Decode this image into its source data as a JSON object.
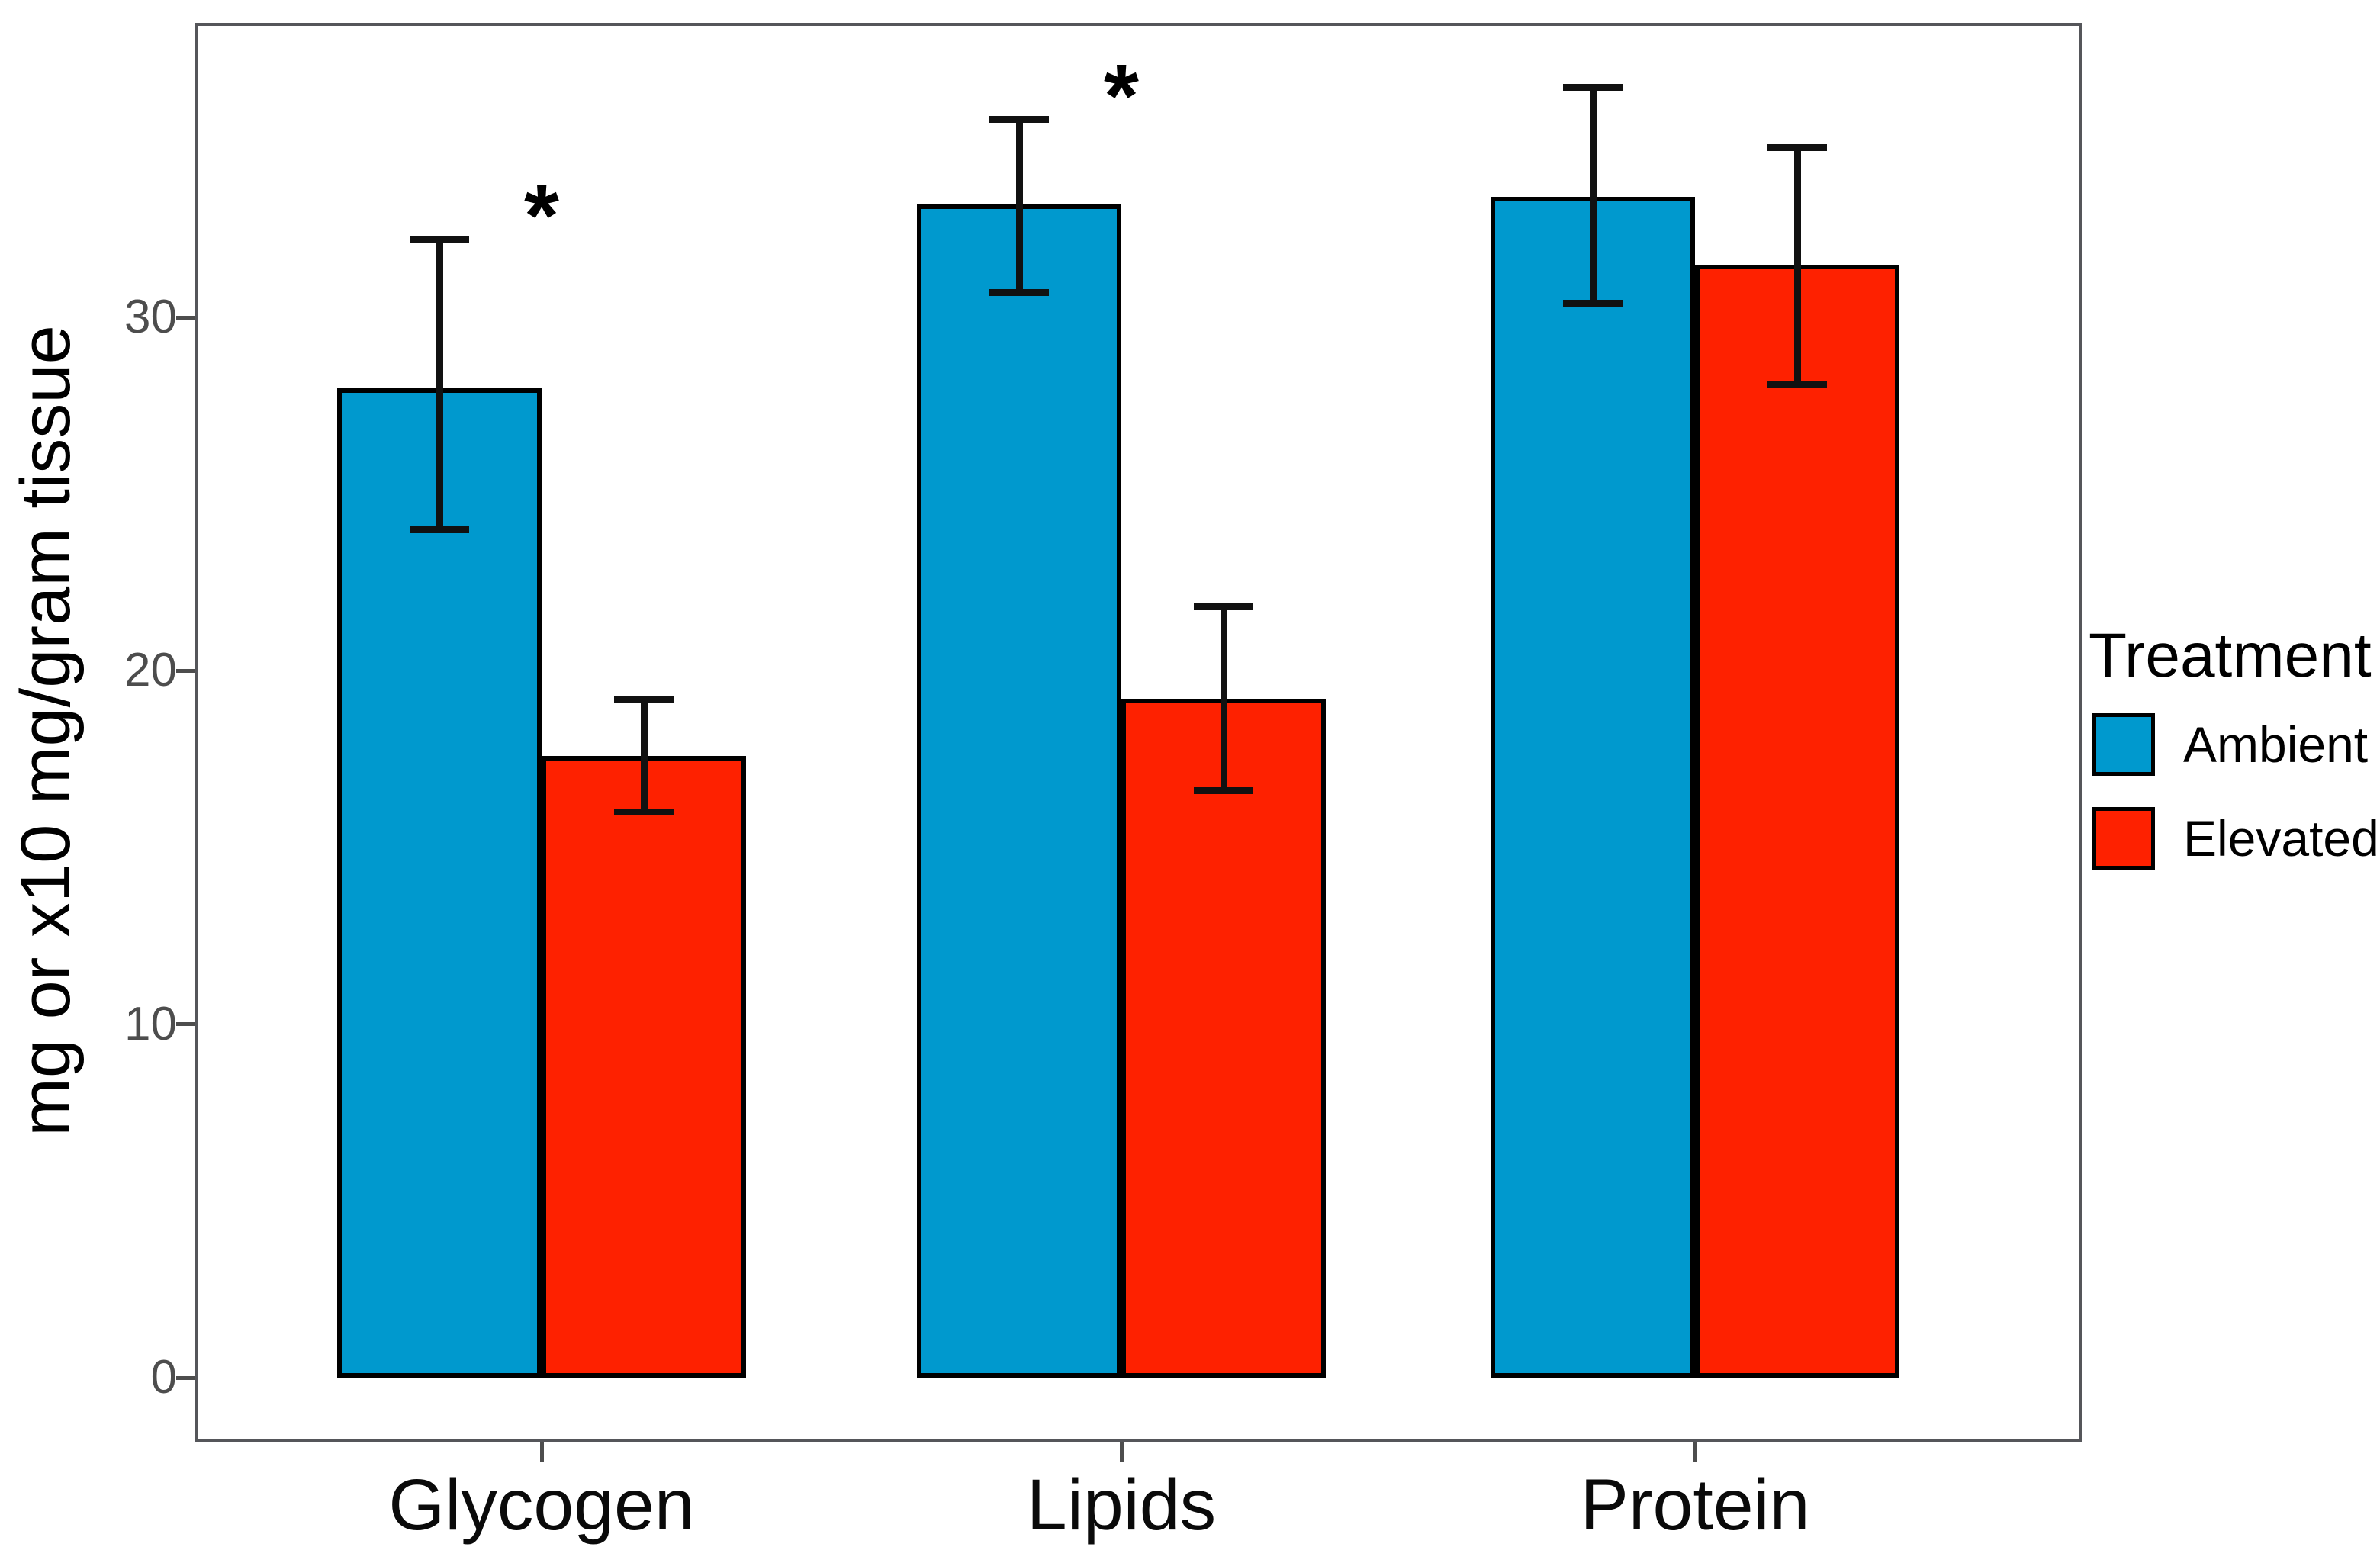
{
  "chart_data": {
    "type": "bar",
    "title": "",
    "categories": [
      "Glycogen",
      "Lipids",
      "Protein"
    ],
    "series": [
      {
        "name": "Ambient",
        "color": "#0099CE",
        "values": [
          28.0,
          33.2,
          33.4
        ],
        "err_low": [
          24.0,
          30.7,
          30.4
        ],
        "err_high": [
          32.2,
          35.6,
          36.5
        ]
      },
      {
        "name": "Elevated",
        "color": "#FE2100",
        "values": [
          17.6,
          19.2,
          31.5
        ],
        "err_low": [
          16.0,
          16.6,
          28.1
        ],
        "err_high": [
          19.2,
          21.8,
          34.8
        ]
      }
    ],
    "xlabel": "",
    "ylabel": "mg or x10 mg/gram tissue",
    "yticks": [
      0,
      10,
      20,
      30
    ],
    "ylim": [
      -1.8,
      38.4
    ],
    "grid": false,
    "bar_outline_color": "#000000",
    "errorbar_color": "#111111",
    "significance_marks": [
      {
        "category": "Glycogen",
        "label": "*"
      },
      {
        "category": "Lipids",
        "label": "*"
      }
    ],
    "legend": {
      "title": "Treatment",
      "position": "right",
      "entries": [
        "Ambient",
        "Elevated"
      ]
    }
  }
}
